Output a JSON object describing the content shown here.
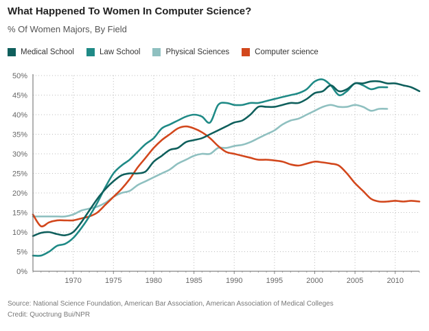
{
  "header": {
    "title": "What Happened To Women In Computer Science?",
    "subtitle": "% Of Women Majors, By Field"
  },
  "legend": [
    {
      "label": "Medical School",
      "color": "#0f5f5c"
    },
    {
      "label": "Law School",
      "color": "#1f8a86"
    },
    {
      "label": "Physical Sciences",
      "color": "#8fc0c0"
    },
    {
      "label": "Computer science",
      "color": "#d2471c"
    }
  ],
  "footer": {
    "source": "Source: National Science Foundation, American Bar Association, American Association of Medical Colleges",
    "credit": "Credit: Quoctrung Bui/NPR"
  },
  "chart_data": {
    "type": "line",
    "xlim": [
      1965,
      2013
    ],
    "ylim": [
      0,
      50
    ],
    "xticks": [
      1970,
      1975,
      1980,
      1985,
      1990,
      1995,
      2000,
      2005,
      2010
    ],
    "yticks": [
      0,
      5,
      10,
      15,
      20,
      25,
      30,
      35,
      40,
      45,
      50
    ],
    "ytick_labels": [
      "0%",
      "5%",
      "10%",
      "15%",
      "20%",
      "25%",
      "30%",
      "35%",
      "40%",
      "45%",
      "50%"
    ],
    "grid": true,
    "legend_position": "top-left",
    "series": [
      {
        "name": "Medical School",
        "color": "#0f5f5c",
        "points": [
          [
            1965,
            9
          ],
          [
            1966,
            9.8
          ],
          [
            1967,
            10
          ],
          [
            1968,
            9.5
          ],
          [
            1969,
            9.2
          ],
          [
            1970,
            10
          ],
          [
            1971,
            12.5
          ],
          [
            1972,
            15.5
          ],
          [
            1973,
            18.5
          ],
          [
            1974,
            21
          ],
          [
            1975,
            23
          ],
          [
            1976,
            24.5
          ],
          [
            1977,
            25
          ],
          [
            1978,
            25
          ],
          [
            1979,
            25.5
          ],
          [
            1980,
            28
          ],
          [
            1981,
            29.5
          ],
          [
            1982,
            31
          ],
          [
            1983,
            31.5
          ],
          [
            1984,
            33
          ],
          [
            1985,
            33.5
          ],
          [
            1986,
            34
          ],
          [
            1987,
            35
          ],
          [
            1988,
            36
          ],
          [
            1989,
            37
          ],
          [
            1990,
            38
          ],
          [
            1991,
            38.5
          ],
          [
            1992,
            40
          ],
          [
            1993,
            42
          ],
          [
            1994,
            42
          ],
          [
            1995,
            42
          ],
          [
            1996,
            42.5
          ],
          [
            1997,
            43
          ],
          [
            1998,
            43
          ],
          [
            1999,
            44
          ],
          [
            2000,
            45.5
          ],
          [
            2001,
            46
          ],
          [
            2002,
            47.5
          ],
          [
            2003,
            46
          ],
          [
            2004,
            46.5
          ],
          [
            2005,
            48
          ],
          [
            2006,
            48
          ],
          [
            2007,
            48.5
          ],
          [
            2008,
            48.5
          ],
          [
            2009,
            48
          ],
          [
            2010,
            48
          ],
          [
            2011,
            47.5
          ],
          [
            2012,
            47
          ],
          [
            2013,
            46
          ]
        ]
      },
      {
        "name": "Law School",
        "color": "#1f8a86",
        "points": [
          [
            1965,
            4
          ],
          [
            1966,
            4
          ],
          [
            1967,
            5
          ],
          [
            1968,
            6.5
          ],
          [
            1969,
            7
          ],
          [
            1970,
            8.5
          ],
          [
            1971,
            11
          ],
          [
            1972,
            14
          ],
          [
            1973,
            17.5
          ],
          [
            1974,
            21.5
          ],
          [
            1975,
            25
          ],
          [
            1976,
            27
          ],
          [
            1977,
            28.5
          ],
          [
            1978,
            30.5
          ],
          [
            1979,
            32.5
          ],
          [
            1980,
            34
          ],
          [
            1981,
            36.5
          ],
          [
            1982,
            37.5
          ],
          [
            1983,
            38.5
          ],
          [
            1984,
            39.5
          ],
          [
            1985,
            40
          ],
          [
            1986,
            39.5
          ],
          [
            1987,
            38
          ],
          [
            1988,
            42.5
          ],
          [
            1989,
            43
          ],
          [
            1990,
            42.5
          ],
          [
            1991,
            42.5
          ],
          [
            1992,
            43
          ],
          [
            1993,
            43
          ],
          [
            1994,
            43.5
          ],
          [
            1995,
            44
          ],
          [
            1996,
            44.5
          ],
          [
            1997,
            45
          ],
          [
            1998,
            45.5
          ],
          [
            1999,
            46.5
          ],
          [
            2000,
            48.5
          ],
          [
            2001,
            49
          ],
          [
            2002,
            47.5
          ],
          [
            2003,
            45
          ],
          [
            2004,
            46
          ],
          [
            2005,
            48
          ],
          [
            2006,
            47.5
          ],
          [
            2007,
            46.5
          ],
          [
            2008,
            47
          ],
          [
            2009,
            47
          ]
        ]
      },
      {
        "name": "Physical Sciences",
        "color": "#8fc0c0",
        "points": [
          [
            1965,
            14
          ],
          [
            1966,
            14
          ],
          [
            1967,
            14
          ],
          [
            1968,
            14
          ],
          [
            1969,
            14
          ],
          [
            1970,
            14.5
          ],
          [
            1971,
            15.5
          ],
          [
            1972,
            16
          ],
          [
            1973,
            16.5
          ],
          [
            1974,
            17.5
          ],
          [
            1975,
            19
          ],
          [
            1976,
            20
          ],
          [
            1977,
            20.5
          ],
          [
            1978,
            22
          ],
          [
            1979,
            23
          ],
          [
            1980,
            24
          ],
          [
            1981,
            25
          ],
          [
            1982,
            26
          ],
          [
            1983,
            27.5
          ],
          [
            1984,
            28.5
          ],
          [
            1985,
            29.5
          ],
          [
            1986,
            30
          ],
          [
            1987,
            30
          ],
          [
            1988,
            31.5
          ],
          [
            1989,
            31.5
          ],
          [
            1990,
            32
          ],
          [
            1991,
            32.3
          ],
          [
            1992,
            33
          ],
          [
            1993,
            34
          ],
          [
            1994,
            35
          ],
          [
            1995,
            36
          ],
          [
            1996,
            37.5
          ],
          [
            1997,
            38.5
          ],
          [
            1998,
            39
          ],
          [
            1999,
            40
          ],
          [
            2000,
            41
          ],
          [
            2001,
            42
          ],
          [
            2002,
            42.5
          ],
          [
            2003,
            42
          ],
          [
            2004,
            42
          ],
          [
            2005,
            42.5
          ],
          [
            2006,
            42
          ],
          [
            2007,
            41
          ],
          [
            2008,
            41.5
          ],
          [
            2009,
            41.5
          ]
        ]
      },
      {
        "name": "Computer science",
        "color": "#d2471c",
        "points": [
          [
            1965,
            14.5
          ],
          [
            1966,
            11.5
          ],
          [
            1967,
            12.5
          ],
          [
            1968,
            13
          ],
          [
            1969,
            13
          ],
          [
            1970,
            13
          ],
          [
            1971,
            13.5
          ],
          [
            1972,
            14
          ],
          [
            1973,
            15
          ],
          [
            1974,
            17
          ],
          [
            1975,
            19
          ],
          [
            1976,
            21
          ],
          [
            1977,
            23.5
          ],
          [
            1978,
            26.5
          ],
          [
            1979,
            29
          ],
          [
            1980,
            31.5
          ],
          [
            1981,
            33.5
          ],
          [
            1982,
            35
          ],
          [
            1983,
            36.5
          ],
          [
            1984,
            37
          ],
          [
            1985,
            36.5
          ],
          [
            1986,
            35.5
          ],
          [
            1987,
            34
          ],
          [
            1988,
            32
          ],
          [
            1989,
            30.5
          ],
          [
            1990,
            30
          ],
          [
            1991,
            29.5
          ],
          [
            1992,
            29
          ],
          [
            1993,
            28.5
          ],
          [
            1994,
            28.5
          ],
          [
            1995,
            28.3
          ],
          [
            1996,
            28
          ],
          [
            1997,
            27.3
          ],
          [
            1998,
            27
          ],
          [
            1999,
            27.5
          ],
          [
            2000,
            28
          ],
          [
            2001,
            27.8
          ],
          [
            2002,
            27.5
          ],
          [
            2003,
            27
          ],
          [
            2004,
            25
          ],
          [
            2005,
            22.5
          ],
          [
            2006,
            20.5
          ],
          [
            2007,
            18.5
          ],
          [
            2008,
            17.8
          ],
          [
            2009,
            17.8
          ],
          [
            2010,
            18
          ],
          [
            2011,
            17.8
          ],
          [
            2012,
            18
          ],
          [
            2013,
            17.8
          ]
        ]
      }
    ]
  }
}
